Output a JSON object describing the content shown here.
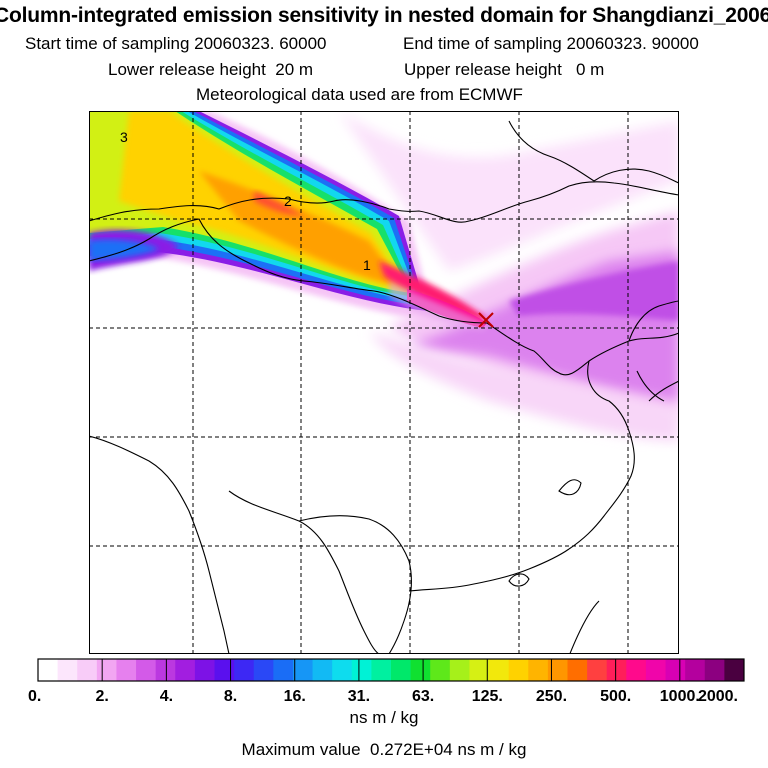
{
  "header": {
    "title": "Column-integrated emission sensitivity in nested domain for Shangdianzi_2006",
    "start_label": "Start time of sampling",
    "start_value": "20060323. 60000",
    "end_label": "End time of sampling",
    "end_value": "20060323. 90000",
    "lower_label": "Lower release height",
    "lower_value": "20 m",
    "upper_label": "Upper release height",
    "upper_value": "0 m",
    "met_text": "Meteorological data used are from ECMWF"
  },
  "map": {
    "contour_labels": [
      "3",
      "2",
      "1"
    ],
    "release_site": "Shangdianzi",
    "gridlines": "dashed"
  },
  "colorbar": {
    "unit": "ns m / kg",
    "tick_labels": [
      "0.",
      "2.",
      "4.",
      "8.",
      "16.",
      "31.",
      "63.",
      "125.",
      "250.",
      "500.",
      "1000.",
      "2000."
    ],
    "colors": [
      "#ffffff",
      "#fce6fc",
      "#f8ccf8",
      "#f2a6f2",
      "#e680ee",
      "#d35ae8",
      "#bb38e0",
      "#a21ee0",
      "#7d12e6",
      "#5a10ee",
      "#3d28f4",
      "#2a48f6",
      "#1a6df6",
      "#1696f6",
      "#12baf4",
      "#0edcee",
      "#00f2d6",
      "#00f0a0",
      "#00e86a",
      "#10e030",
      "#5ee81a",
      "#a6f01a",
      "#d6f014",
      "#f2e80c",
      "#ffd200",
      "#ffb400",
      "#ff9600",
      "#ff6e00",
      "#ff4040",
      "#ff1e5a",
      "#ff0a8c",
      "#f005aa",
      "#d800b4",
      "#b4009e",
      "#8c0080",
      "#4a0040"
    ]
  },
  "footer": {
    "max_label": "Maximum value",
    "max_value": "0.272E+04",
    "max_unit": "ns m / kg"
  }
}
